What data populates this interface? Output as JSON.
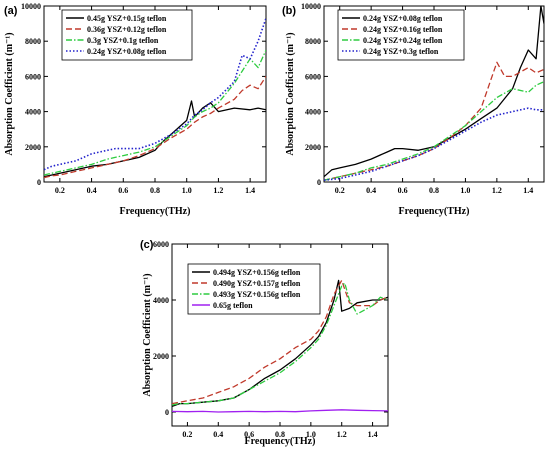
{
  "figure": {
    "panels": [
      {
        "label": "(a)"
      },
      {
        "label": "(b)"
      },
      {
        "label": "(c)"
      }
    ]
  },
  "chart_data": [
    {
      "type": "line",
      "panel": "(a)",
      "xlabel": "Frequency(THz)",
      "ylabel": "Absorption Coefficient (m⁻¹)",
      "xlim": [
        0.1,
        1.5
      ],
      "ylim": [
        0,
        10000
      ],
      "xticks": [
        "0.2",
        "0.4",
        "0.6",
        "0.8",
        "1.0",
        "1.2",
        "1.4"
      ],
      "yticks": [
        "0",
        "2000",
        "4000",
        "6000",
        "8000",
        "10000"
      ],
      "legend_position": "top-left",
      "grid": false,
      "series": [
        {
          "name": "0.45g YSZ+0.15g teflon",
          "color": "#000000",
          "dash": "solid",
          "x": [
            0.1,
            0.15,
            0.2,
            0.3,
            0.4,
            0.5,
            0.6,
            0.7,
            0.8,
            0.85,
            0.9,
            0.95,
            1.0,
            1.03,
            1.05,
            1.1,
            1.15,
            1.2,
            1.3,
            1.4,
            1.45,
            1.5
          ],
          "y": [
            300,
            400,
            500,
            700,
            900,
            1000,
            1200,
            1400,
            1800,
            2300,
            2700,
            3100,
            3500,
            4600,
            3700,
            4200,
            4500,
            4000,
            4200,
            4100,
            4200,
            4100
          ]
        },
        {
          "name": "0.36g YSZ+0.12g teflon",
          "color": "#c0392b",
          "dash": "dash",
          "x": [
            0.1,
            0.15,
            0.2,
            0.3,
            0.4,
            0.5,
            0.6,
            0.7,
            0.8,
            0.9,
            1.0,
            1.05,
            1.1,
            1.15,
            1.2,
            1.3,
            1.35,
            1.4,
            1.45,
            1.5
          ],
          "y": [
            250,
            350,
            400,
            600,
            800,
            1000,
            1200,
            1500,
            1900,
            2500,
            3000,
            3400,
            3700,
            3900,
            4200,
            4700,
            5200,
            5500,
            5300,
            6000
          ]
        },
        {
          "name": "0.3g YSZ+0.1g teflon",
          "color": "#2ecc40",
          "dash": "dashdot",
          "x": [
            0.1,
            0.15,
            0.2,
            0.3,
            0.4,
            0.5,
            0.6,
            0.7,
            0.8,
            0.9,
            1.0,
            1.05,
            1.1,
            1.15,
            1.2,
            1.3,
            1.35,
            1.4,
            1.45,
            1.5
          ],
          "y": [
            400,
            500,
            600,
            800,
            1000,
            1300,
            1500,
            1700,
            2000,
            2600,
            3200,
            3700,
            4000,
            4200,
            4500,
            5600,
            6300,
            7000,
            6500,
            7500
          ]
        },
        {
          "name": "0.24g YSZ+0.08g teflon",
          "color": "#2222cc",
          "dash": "dot",
          "x": [
            0.1,
            0.15,
            0.2,
            0.25,
            0.3,
            0.4,
            0.5,
            0.55,
            0.6,
            0.7,
            0.8,
            0.9,
            1.0,
            1.05,
            1.1,
            1.15,
            1.2,
            1.3,
            1.35,
            1.4,
            1.45,
            1.5
          ],
          "y": [
            700,
            900,
            1000,
            1100,
            1200,
            1600,
            1800,
            1900,
            1900,
            1900,
            2200,
            2700,
            3300,
            3800,
            4100,
            4500,
            4800,
            5700,
            7200,
            7000,
            8000,
            9300
          ]
        }
      ]
    },
    {
      "type": "line",
      "panel": "(b)",
      "xlabel": "Frequency(THz)",
      "ylabel": "Absorption Coefficient (m⁻¹)",
      "xlim": [
        0.1,
        1.5
      ],
      "ylim": [
        0,
        10000
      ],
      "xticks": [
        "0.2",
        "0.4",
        "0.6",
        "0.8",
        "1.0",
        "1.2",
        "1.4"
      ],
      "yticks": [
        "0",
        "2000",
        "4000",
        "6000",
        "8000",
        "10000"
      ],
      "legend_position": "top-left",
      "grid": false,
      "series": [
        {
          "name": "0.24g YSZ+0.08g teflon",
          "color": "#000000",
          "dash": "solid",
          "x": [
            0.1,
            0.15,
            0.2,
            0.3,
            0.4,
            0.5,
            0.55,
            0.6,
            0.7,
            0.8,
            0.9,
            1.0,
            1.1,
            1.2,
            1.3,
            1.35,
            1.4,
            1.45,
            1.48,
            1.5
          ],
          "y": [
            300,
            700,
            800,
            1000,
            1300,
            1700,
            1900,
            1900,
            1800,
            2000,
            2500,
            3000,
            3600,
            4200,
            5300,
            6500,
            7500,
            7000,
            10000,
            9000
          ]
        },
        {
          "name": "0.24g YSZ+0.16g teflon",
          "color": "#c0392b",
          "dash": "dash",
          "x": [
            0.1,
            0.2,
            0.3,
            0.4,
            0.5,
            0.6,
            0.7,
            0.8,
            0.9,
            1.0,
            1.1,
            1.15,
            1.2,
            1.25,
            1.3,
            1.4,
            1.45,
            1.5
          ],
          "y": [
            100,
            300,
            500,
            700,
            900,
            1200,
            1500,
            1900,
            2500,
            3200,
            4200,
            5500,
            6800,
            6000,
            6000,
            6500,
            6200,
            6400
          ]
        },
        {
          "name": "0.24g YSZ+0.24g teflon",
          "color": "#2ecc40",
          "dash": "dashdot",
          "x": [
            0.1,
            0.2,
            0.3,
            0.4,
            0.5,
            0.6,
            0.7,
            0.8,
            0.9,
            1.0,
            1.1,
            1.15,
            1.2,
            1.3,
            1.4,
            1.45,
            1.5
          ],
          "y": [
            100,
            300,
            500,
            800,
            1000,
            1300,
            1600,
            2000,
            2600,
            3200,
            4000,
            4400,
            4800,
            5300,
            5100,
            5500,
            5700
          ]
        },
        {
          "name": "0.24g YSZ+0.3g teflon",
          "color": "#2222cc",
          "dash": "dot",
          "x": [
            0.1,
            0.2,
            0.3,
            0.4,
            0.5,
            0.6,
            0.7,
            0.8,
            0.9,
            1.0,
            1.1,
            1.2,
            1.3,
            1.4,
            1.45,
            1.5
          ],
          "y": [
            100,
            200,
            400,
            600,
            900,
            1200,
            1500,
            1900,
            2400,
            2900,
            3400,
            3800,
            4000,
            4200,
            4100,
            4100
          ]
        }
      ]
    },
    {
      "type": "line",
      "panel": "(c)",
      "xlabel": "Frequency(THz)",
      "ylabel": "Absorption Coefficient (m⁻¹)",
      "xlim": [
        0.1,
        1.5
      ],
      "ylim": [
        -500,
        6000
      ],
      "xticks": [
        "0.2",
        "0.4",
        "0.6",
        "0.8",
        "1.0",
        "1.2",
        "1.4"
      ],
      "yticks": [
        "0",
        "2000",
        "4000",
        "6000"
      ],
      "legend_position": "top-left",
      "grid": false,
      "series": [
        {
          "name": "0.494g YSZ+0.156g teflon",
          "color": "#000000",
          "dash": "solid",
          "x": [
            0.1,
            0.15,
            0.2,
            0.3,
            0.4,
            0.5,
            0.6,
            0.7,
            0.8,
            0.9,
            1.0,
            1.05,
            1.1,
            1.15,
            1.18,
            1.2,
            1.25,
            1.3,
            1.4,
            1.45,
            1.5
          ],
          "y": [
            200,
            300,
            300,
            350,
            400,
            500,
            800,
            1200,
            1500,
            1900,
            2400,
            2700,
            3200,
            4000,
            4700,
            3600,
            3700,
            3900,
            4000,
            4000,
            4100
          ]
        },
        {
          "name": "0.490g YSZ+0.157g teflon",
          "color": "#c0392b",
          "dash": "dash",
          "x": [
            0.1,
            0.15,
            0.2,
            0.3,
            0.4,
            0.5,
            0.6,
            0.7,
            0.8,
            0.9,
            1.0,
            1.05,
            1.1,
            1.15,
            1.2,
            1.25,
            1.3,
            1.4,
            1.45,
            1.5
          ],
          "y": [
            300,
            350,
            400,
            500,
            700,
            900,
            1200,
            1600,
            1900,
            2300,
            2600,
            2900,
            3400,
            4200,
            4700,
            3900,
            3800,
            3800,
            4000,
            4100
          ]
        },
        {
          "name": "0.493g YSZ+0.156g teflon",
          "color": "#2ecc40",
          "dash": "dashdot",
          "x": [
            0.1,
            0.15,
            0.2,
            0.3,
            0.4,
            0.5,
            0.6,
            0.7,
            0.8,
            0.9,
            1.0,
            1.05,
            1.1,
            1.15,
            1.2,
            1.22,
            1.25,
            1.3,
            1.4,
            1.45,
            1.5
          ],
          "y": [
            250,
            300,
            300,
            350,
            400,
            500,
            800,
            1100,
            1400,
            1800,
            2300,
            2600,
            3100,
            3800,
            4500,
            4600,
            4000,
            3500,
            3800,
            4100,
            4000
          ]
        },
        {
          "name": "0.65g teflon",
          "color": "#a020f0",
          "dash": "solid",
          "x": [
            0.1,
            0.2,
            0.3,
            0.4,
            0.5,
            0.6,
            0.7,
            0.8,
            0.9,
            1.0,
            1.1,
            1.2,
            1.3,
            1.4,
            1.5
          ],
          "y": [
            20,
            10,
            20,
            0,
            10,
            20,
            10,
            20,
            10,
            40,
            60,
            80,
            60,
            50,
            40
          ]
        }
      ]
    }
  ]
}
